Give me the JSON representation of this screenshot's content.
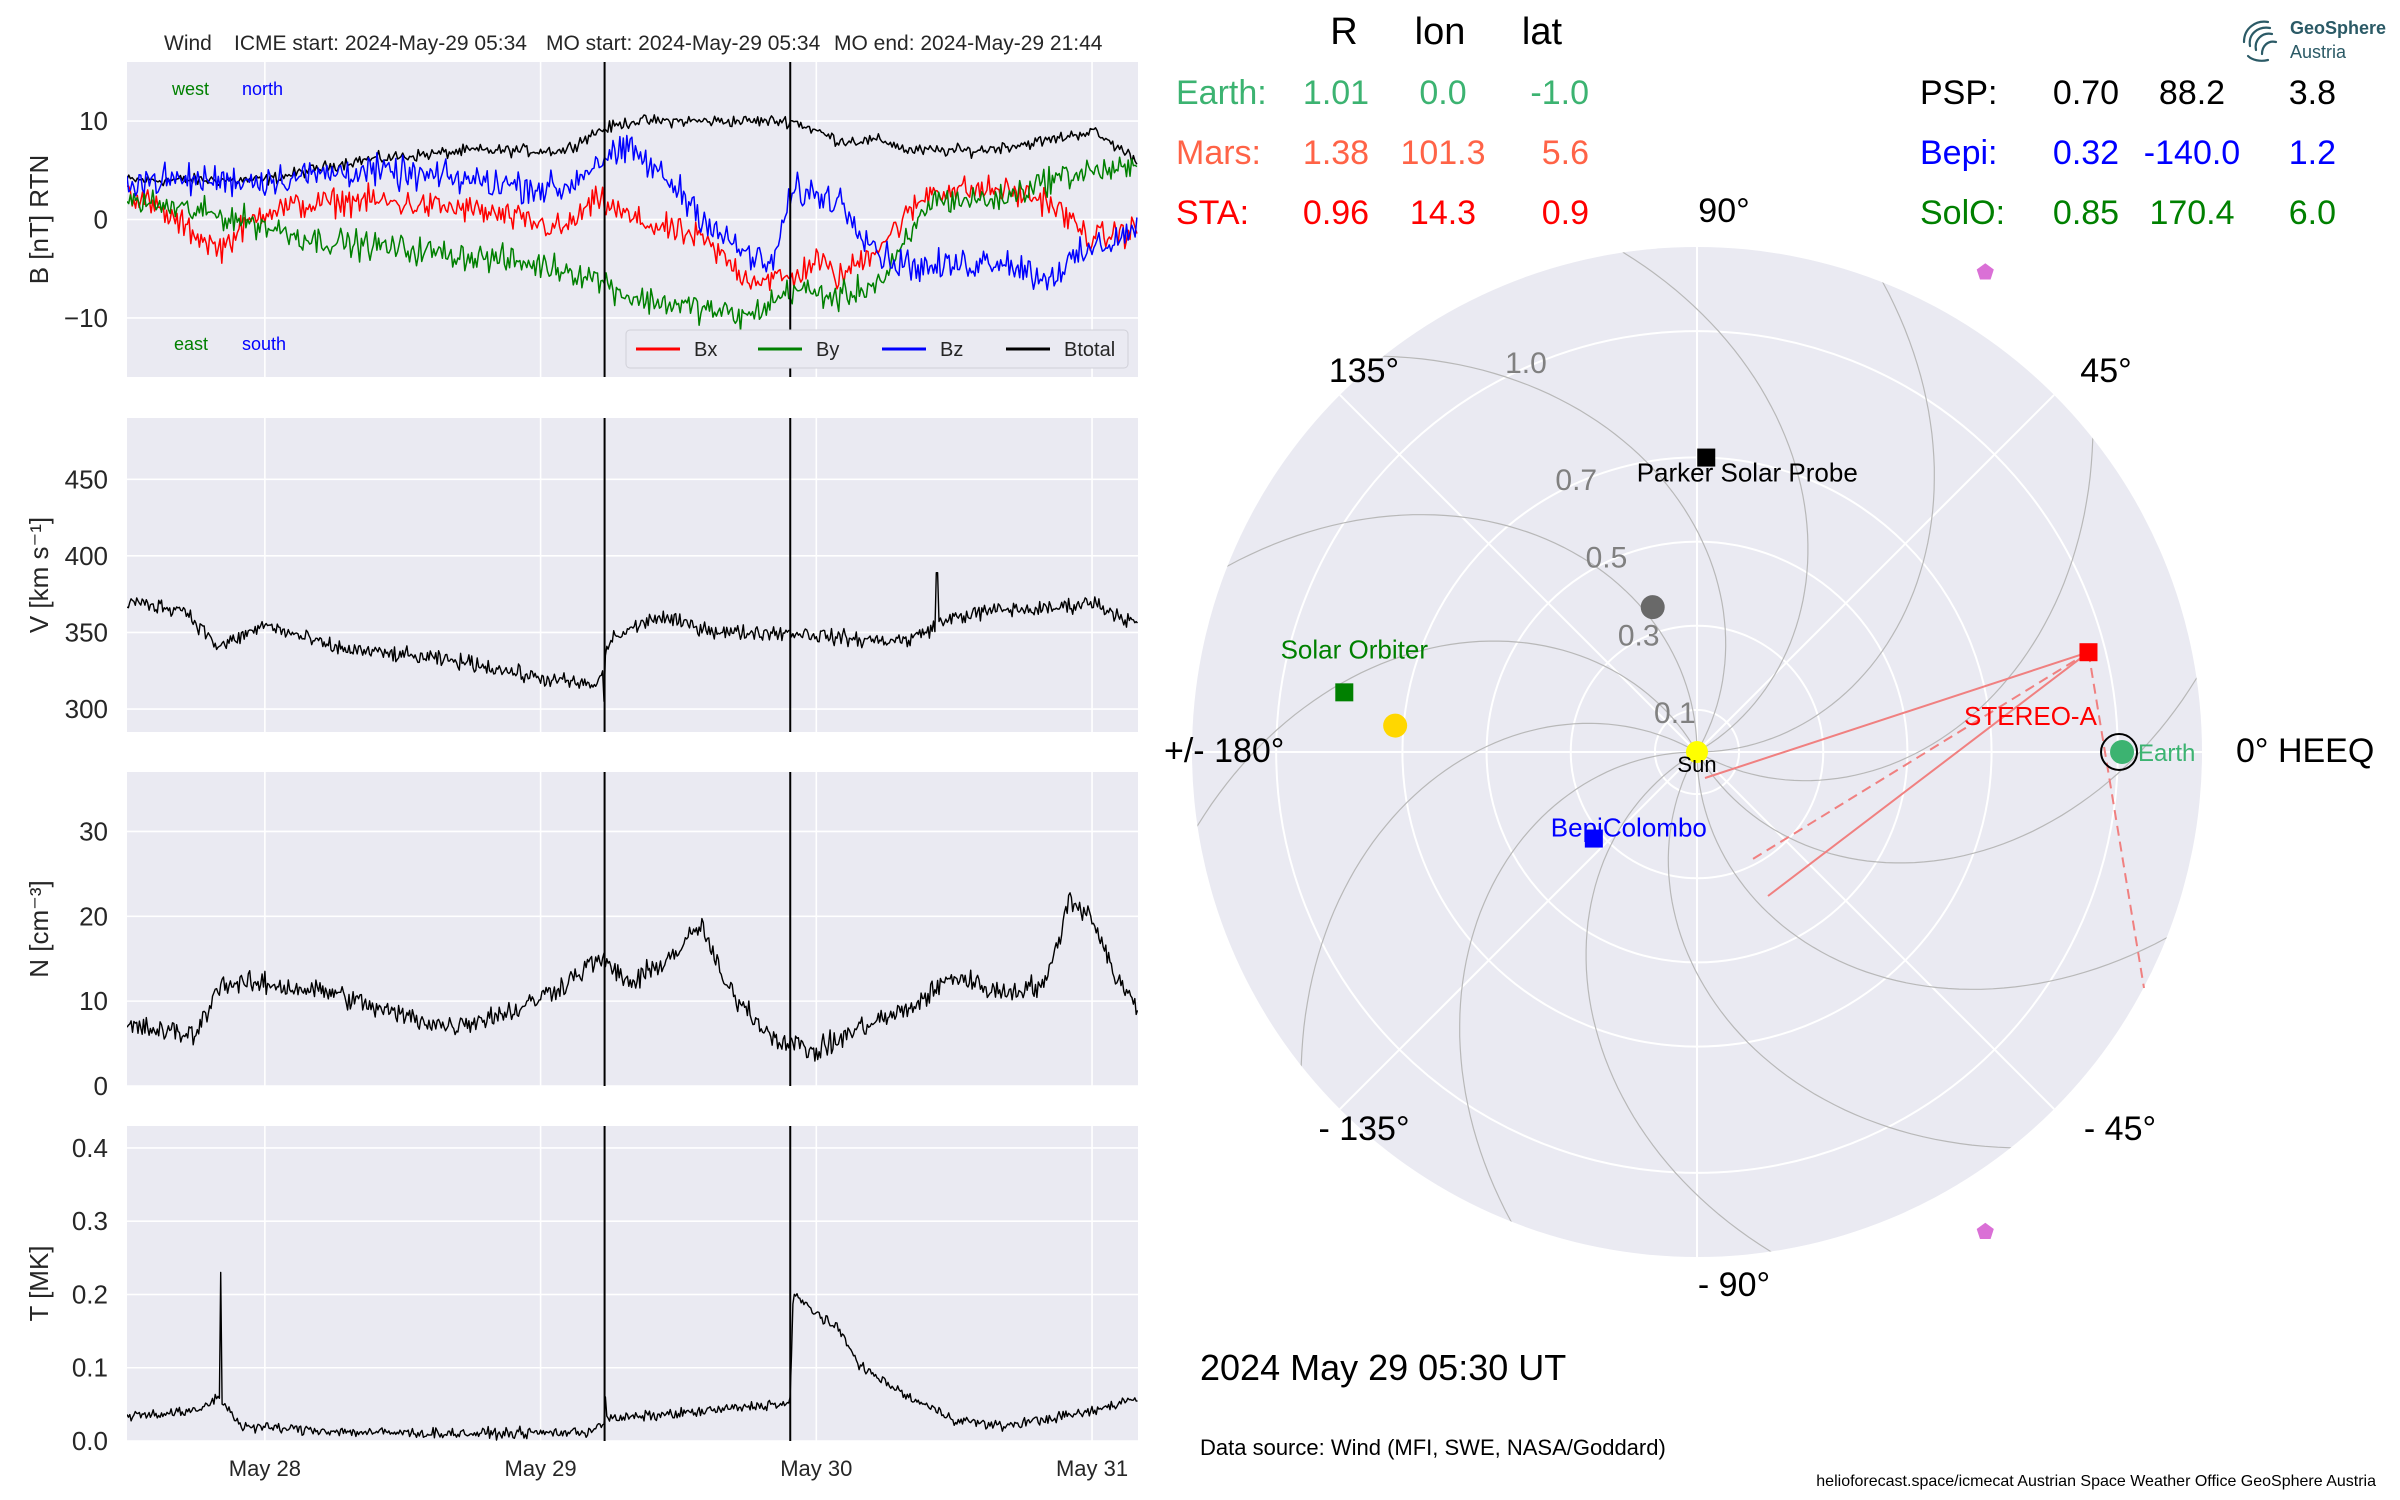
{
  "header": {
    "spacecraft": "Wind",
    "icme_start": "ICME start: 2024-May-29 05:34",
    "mo_start": "MO start: 2024-May-29 05:34",
    "mo_end": "MO end: 2024-May-29 21:44"
  },
  "panels": {
    "b": {
      "ylabel": "B [nT] RTN",
      "ylim": [
        -16,
        16
      ],
      "yticks": [
        "10",
        "0",
        "−10"
      ],
      "ytick_values": [
        10,
        0,
        -10
      ],
      "labels": {
        "west": "west",
        "north": "north",
        "east": "east",
        "south": "south"
      }
    },
    "v": {
      "ylabel": "V [km s⁻¹]",
      "ylim": [
        285,
        490
      ],
      "yticks": [
        "450",
        "400",
        "350",
        "300"
      ],
      "ytick_values": [
        450,
        400,
        350,
        300
      ]
    },
    "n": {
      "ylabel": "N [cm⁻³]",
      "ylim": [
        0,
        37
      ],
      "yticks": [
        "30",
        "20",
        "10",
        "0"
      ],
      "ytick_values": [
        30,
        20,
        10,
        0
      ]
    },
    "t": {
      "ylabel": "T [MK]",
      "ylim": [
        0,
        0.43
      ],
      "yticks": [
        "0.4",
        "0.3",
        "0.2",
        "0.1",
        "0.0"
      ],
      "ytick_values": [
        0.4,
        0.3,
        0.2,
        0.1,
        0.0
      ]
    }
  },
  "xaxis": {
    "ticks": [
      "May 28",
      "May 29",
      "May 30",
      "May 31"
    ],
    "range_hours": [
      0,
      88
    ],
    "tick_hours": [
      12,
      36,
      60,
      84
    ]
  },
  "event_lines_hours": [
    41.57,
    57.73
  ],
  "legend": [
    {
      "label": "Bx",
      "color": "#ff0000"
    },
    {
      "label": "By",
      "color": "#008000"
    },
    {
      "label": "Bz",
      "color": "#0000ff"
    },
    {
      "label": "Btotal",
      "color": "#000000"
    }
  ],
  "positions_table": {
    "headers": [
      "R",
      "lon",
      "lat"
    ],
    "left_rows": [
      {
        "name": "Earth:",
        "R": "1.01",
        "lon": "0.0",
        "lat": "-1.0",
        "color": "#3cb371"
      },
      {
        "name": "Mars:",
        "R": "1.38",
        "lon": "101.3",
        "lat": "5.6",
        "color": "#ff6347"
      },
      {
        "name": "STA:",
        "R": "0.96",
        "lon": "14.3",
        "lat": "0.9",
        "color": "#ff0000"
      }
    ],
    "right_rows": [
      {
        "name": "PSP:",
        "R": "0.70",
        "lon": "88.2",
        "lat": "3.8",
        "color": "#000000"
      },
      {
        "name": "Bepi:",
        "R": "0.32",
        "lon": "-140.0",
        "lat": "1.2",
        "color": "#0000ff"
      },
      {
        "name": "SolO:",
        "R": "0.85",
        "lon": "170.4",
        "lat": "6.0",
        "color": "#008000"
      }
    ]
  },
  "polar": {
    "angle_labels": {
      "a90": "90°",
      "a45": "45°",
      "a135": "135°",
      "a0": "0° HEEQ",
      "a180": "+/- 180°",
      "am45": "- 45°",
      "am135": "- 135°",
      "am90": "- 90°"
    },
    "radial_labels": [
      "1.0",
      "0.7",
      "0.5",
      "0.3",
      "0.1"
    ],
    "radial_values": [
      1.0,
      0.7,
      0.5,
      0.3,
      0.1
    ],
    "rmax": 1.2,
    "bodies": [
      {
        "name": "Sun",
        "r": 0,
        "lon": 0,
        "color": "#ffff00",
        "shape": "circle"
      },
      {
        "name": "Earth",
        "r": 1.01,
        "lon": 0.0,
        "color": "#3cb371",
        "shape": "circle"
      },
      {
        "name": "STEREO-A",
        "r": 0.96,
        "lon": 14.3,
        "color": "#ff0000",
        "shape": "square"
      },
      {
        "name": "Parker Solar Probe",
        "r": 0.7,
        "lon": 88.2,
        "color": "#000000",
        "shape": "square"
      },
      {
        "name": "BepiColombo",
        "r": 0.32,
        "lon": -140.0,
        "color": "#0000ff",
        "shape": "square"
      },
      {
        "name": "Solar Orbiter",
        "r": 0.85,
        "lon": 170.4,
        "color": "#008000",
        "shape": "square"
      }
    ],
    "planets_unlabeled": [
      {
        "r": 0.72,
        "lon": 175,
        "color": "#ffd700",
        "shape": "circle"
      },
      {
        "r": 0.36,
        "lon": 107,
        "color": "#696969",
        "shape": "circle"
      },
      {
        "r": 1.33,
        "lon": 59,
        "color": "#da70d6",
        "shape": "pentagon"
      },
      {
        "r": 1.33,
        "lon": -59,
        "color": "#da70d6",
        "shape": "pentagon"
      }
    ]
  },
  "timestamp": "2024 May 29  05:30 UT",
  "data_source": "Data source: Wind (MFI, SWE, NASA/Goddard)",
  "footer": "helioforecast.space/icmecat   Austrian Space Weather Office   GeoSphere Austria",
  "logo": {
    "line1": "GeoSphere",
    "line2": "Austria"
  }
}
